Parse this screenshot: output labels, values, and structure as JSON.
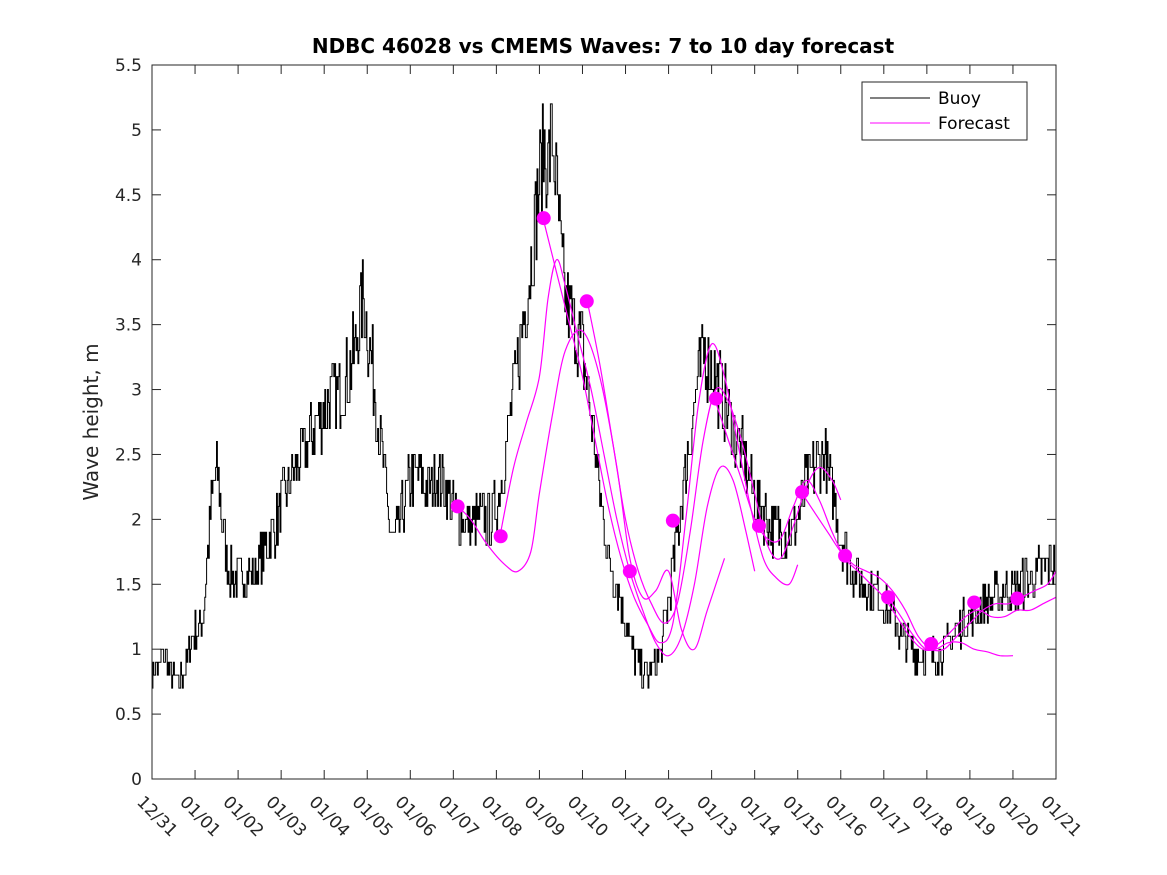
{
  "chart_data": {
    "type": "line",
    "title": "NDBC 46028 vs CMEMS Waves: 7 to 10 day forecast",
    "xlabel": "",
    "ylabel": "Wave height, m",
    "xlim": [
      0,
      21
    ],
    "ylim": [
      0,
      5.5
    ],
    "x_tick_values": [
      0,
      1,
      2,
      3,
      4,
      5,
      6,
      7,
      8,
      9,
      10,
      11,
      12,
      13,
      14,
      15,
      16,
      17,
      18,
      19,
      20,
      21
    ],
    "x_tick_labels": [
      "12/31",
      "01/01",
      "01/02",
      "01/03",
      "01/04",
      "01/05",
      "01/06",
      "01/07",
      "01/08",
      "01/09",
      "01/10",
      "01/11",
      "01/12",
      "01/13",
      "01/14",
      "01/15",
      "01/16",
      "01/17",
      "01/18",
      "01/19",
      "01/20",
      "01/21"
    ],
    "y_ticks": [
      0,
      0.5,
      1,
      1.5,
      2,
      2.5,
      3,
      3.5,
      4,
      4.5,
      5,
      5.5
    ],
    "y_tick_labels": [
      "0",
      "0.5",
      "1",
      "1.5",
      "2",
      "2.5",
      "3",
      "3.5",
      "4",
      "4.5",
      "5",
      "5.5"
    ],
    "legend_position": "top-right",
    "legend": [
      "Buoy",
      "Forecast"
    ],
    "colors": {
      "buoy": "#000000",
      "forecast": "#ff00ff",
      "axes": "#262626"
    },
    "buoy_series": {
      "name": "Buoy",
      "x": [
        0,
        0.1,
        0.2,
        0.3,
        0.4,
        0.5,
        0.6,
        0.7,
        0.8,
        0.9,
        1.0,
        1.1,
        1.2,
        1.3,
        1.4,
        1.5,
        1.6,
        1.7,
        1.8,
        1.9,
        2.0,
        2.2,
        2.4,
        2.6,
        2.8,
        3.0,
        3.2,
        3.4,
        3.6,
        3.8,
        4.0,
        4.2,
        4.4,
        4.6,
        4.8,
        4.9,
        5.0,
        5.1,
        5.2,
        5.3,
        5.4,
        5.5,
        5.6,
        5.7,
        5.8,
        6.0,
        6.2,
        6.4,
        6.6,
        6.8,
        7.0,
        7.2,
        7.4,
        7.6,
        7.8,
        8.0,
        8.2,
        8.4,
        8.6,
        8.8,
        9.0,
        9.1,
        9.2,
        9.3,
        9.4,
        9.5,
        9.6,
        9.7,
        9.8,
        10.0,
        10.2,
        10.4,
        10.6,
        10.8,
        11.0,
        11.2,
        11.4,
        11.5,
        11.6,
        11.8,
        12.0,
        12.2,
        12.4,
        12.6,
        12.8,
        13.0,
        13.2,
        13.4,
        13.6,
        13.8,
        14.0,
        14.2,
        14.4,
        14.6,
        14.8,
        15.0,
        15.2,
        15.4,
        15.6,
        15.8,
        16.0,
        16.2,
        16.4,
        16.6,
        16.8,
        17.0,
        17.2,
        17.4,
        17.6,
        17.8,
        18.0,
        18.2,
        18.4,
        18.6,
        18.8,
        19.0,
        19.2,
        19.4,
        19.6,
        19.8,
        20.0,
        20.2,
        20.4,
        20.6,
        20.8,
        21.0
      ],
      "values": [
        0.8,
        0.85,
        0.9,
        0.95,
        0.8,
        0.75,
        0.75,
        0.8,
        0.9,
        1.1,
        1.15,
        1.2,
        1.3,
        1.8,
        2.2,
        2.35,
        2.1,
        1.75,
        1.6,
        1.55,
        1.55,
        1.55,
        1.6,
        1.75,
        1.9,
        2.1,
        2.3,
        2.45,
        2.55,
        2.75,
        2.85,
        2.95,
        3.0,
        3.15,
        3.5,
        3.75,
        3.45,
        3.2,
        2.9,
        2.6,
        2.3,
        2.0,
        1.85,
        1.9,
        2.05,
        2.3,
        2.35,
        2.2,
        2.35,
        2.25,
        2.05,
        2.0,
        1.95,
        2.0,
        2.0,
        2.1,
        2.5,
        3.0,
        3.5,
        4.0,
        4.6,
        4.85,
        4.7,
        4.95,
        4.5,
        4.0,
        3.7,
        3.6,
        3.5,
        3.3,
        2.8,
        2.2,
        1.7,
        1.5,
        1.2,
        0.95,
        0.85,
        0.8,
        0.85,
        0.95,
        1.4,
        1.9,
        2.4,
        2.9,
        3.3,
        3.15,
        3.0,
        2.8,
        2.6,
        2.4,
        2.15,
        2.05,
        1.95,
        1.9,
        1.9,
        2.0,
        2.3,
        2.4,
        2.5,
        2.2,
        1.85,
        1.65,
        1.55,
        1.5,
        1.45,
        1.35,
        1.25,
        1.1,
        1.0,
        0.95,
        0.95,
        0.95,
        1.0,
        1.1,
        1.2,
        1.25,
        1.3,
        1.35,
        1.4,
        1.45,
        1.45,
        1.5,
        1.55,
        1.6,
        1.65,
        1.7
      ]
    },
    "forecast_series": [
      {
        "name": "Forecast",
        "x": [
          7.1,
          7.4,
          7.8,
          8.2,
          8.5,
          8.8,
          9.0,
          9.3,
          9.6,
          10.0,
          10.4,
          10.8,
          11.1,
          11.4,
          11.7,
          12.0,
          12.3,
          12.6,
          12.9,
          13.3
        ],
        "values": [
          2.1,
          2.0,
          1.8,
          1.65,
          1.6,
          1.75,
          2.2,
          2.8,
          3.3,
          3.45,
          3.1,
          2.4,
          1.7,
          1.4,
          1.45,
          1.6,
          1.15,
          1.0,
          1.3,
          1.7
        ]
      },
      {
        "name": "Forecast",
        "x": [
          8.1,
          8.4,
          8.7,
          9.0,
          9.2,
          9.4,
          9.6,
          9.9,
          10.2,
          10.5,
          10.8,
          11.1,
          11.4,
          11.7,
          12.0,
          12.3,
          12.6,
          12.9,
          13.2,
          13.5,
          13.8,
          14.0
        ],
        "values": [
          1.9,
          2.4,
          2.75,
          3.1,
          3.7,
          4.0,
          3.8,
          3.4,
          3.0,
          2.5,
          2.0,
          1.6,
          1.3,
          1.05,
          0.95,
          1.1,
          1.5,
          2.1,
          2.4,
          2.3,
          1.9,
          1.6
        ]
      },
      {
        "name": "Forecast",
        "x": [
          9.1,
          9.4,
          9.7,
          10.0,
          10.3,
          10.6,
          10.9,
          11.2,
          11.5,
          11.8,
          12.1,
          12.4,
          12.7,
          13.0,
          13.3,
          13.6,
          13.9,
          14.2,
          14.5,
          14.8,
          15.0
        ],
        "values": [
          4.3,
          3.9,
          3.5,
          3.1,
          2.6,
          2.1,
          1.7,
          1.4,
          1.2,
          1.05,
          1.2,
          2.0,
          2.9,
          3.35,
          3.1,
          2.6,
          2.1,
          1.7,
          1.55,
          1.5,
          1.65
        ]
      },
      {
        "name": "Forecast",
        "x": [
          10.1,
          10.4,
          10.7,
          11.0,
          11.3,
          11.6,
          11.9,
          12.2,
          12.5,
          12.8,
          13.1,
          13.4,
          13.7,
          14.0,
          14.3,
          14.6,
          14.9,
          15.2,
          15.5,
          15.8,
          16.0
        ],
        "values": [
          3.7,
          3.2,
          2.6,
          2.0,
          1.6,
          1.35,
          1.2,
          1.35,
          1.9,
          2.6,
          3.0,
          2.9,
          2.6,
          2.2,
          1.8,
          1.7,
          1.95,
          2.25,
          2.4,
          2.3,
          2.15
        ]
      },
      {
        "name": "Forecast",
        "x": [
          13.1,
          13.4,
          13.7,
          14.0,
          14.3,
          14.6,
          14.9,
          15.2,
          15.5,
          15.8,
          16.1,
          16.4,
          16.7,
          17.0,
          17.3,
          17.6,
          17.9,
          18.2,
          18.5,
          18.8,
          19.1,
          19.4,
          19.7,
          20.0
        ],
        "values": [
          2.9,
          2.6,
          2.3,
          2.0,
          1.85,
          1.85,
          2.1,
          2.3,
          2.15,
          1.9,
          1.7,
          1.6,
          1.5,
          1.4,
          1.25,
          1.1,
          1.0,
          1.0,
          1.05,
          1.05,
          1.0,
          0.98,
          0.95,
          0.95
        ]
      },
      {
        "name": "Forecast",
        "x": [
          15.1,
          15.4,
          15.7,
          16.0,
          16.3,
          16.6,
          16.9,
          17.2,
          17.5,
          17.8,
          18.1,
          18.4,
          18.7,
          19.0,
          19.3,
          19.6,
          19.9,
          20.2,
          20.5,
          20.8,
          21.0
        ],
        "values": [
          2.2,
          2.05,
          1.9,
          1.75,
          1.65,
          1.6,
          1.55,
          1.45,
          1.3,
          1.1,
          1.0,
          1.0,
          1.1,
          1.2,
          1.3,
          1.35,
          1.35,
          1.4,
          1.45,
          1.5,
          1.6
        ]
      },
      {
        "name": "Forecast",
        "x": [
          17.1,
          17.4,
          17.7,
          18.0,
          18.3,
          18.6,
          18.9,
          19.2,
          19.5,
          19.8,
          20.1,
          20.4,
          20.7,
          21.0
        ],
        "values": [
          1.4,
          1.25,
          1.1,
          1.0,
          1.05,
          1.15,
          1.25,
          1.3,
          1.25,
          1.25,
          1.3,
          1.3,
          1.35,
          1.4
        ]
      }
    ],
    "forecast_markers": {
      "x": [
        7.1,
        8.1,
        9.1,
        10.1,
        11.1,
        12.1,
        13.1,
        14.1,
        15.1,
        16.1,
        17.1,
        18.1,
        19.1,
        20.1
      ],
      "values": [
        2.1,
        1.87,
        4.32,
        3.68,
        1.6,
        1.99,
        2.93,
        1.95,
        2.21,
        1.72,
        1.4,
        1.04,
        1.36,
        1.39
      ]
    }
  }
}
